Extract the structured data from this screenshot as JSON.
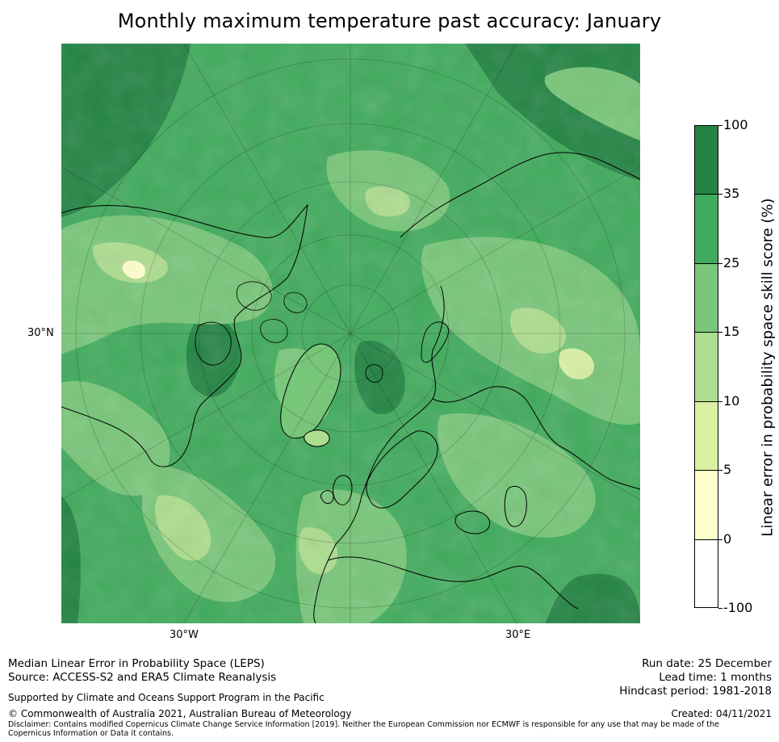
{
  "title": "Monthly maximum temperature past accuracy: January",
  "map": {
    "projection": "north-polar-stereographic",
    "axis_labels": {
      "lat": "30°N",
      "lon_w": "30°W",
      "lon_e": "30°E"
    }
  },
  "colorbar": {
    "label": "Linear error in probability space skill score (%)",
    "ticks": [
      "100",
      "35",
      "25",
      "15",
      "10",
      "5",
      "0",
      "-100"
    ],
    "bins": [
      {
        "from": 35,
        "to": 100,
        "color": "#238443"
      },
      {
        "from": 25,
        "to": 35,
        "color": "#41ab5d"
      },
      {
        "from": 15,
        "to": 25,
        "color": "#78c679"
      },
      {
        "from": 10,
        "to": 15,
        "color": "#addd8e"
      },
      {
        "from": 5,
        "to": 10,
        "color": "#d9f0a3"
      },
      {
        "from": 0,
        "to": 5,
        "color": "#ffffcc"
      },
      {
        "from": -100,
        "to": 0,
        "color": "#ffffff"
      }
    ]
  },
  "footer": {
    "metric": "Median Linear Error in Probability Space (LEPS)",
    "source": "Source: ACCESS-S2 and ERA5 Climate Reanalysis",
    "support": "Supported by Climate and Oceans Support Program in the Pacific",
    "copyright": "© Commonwealth of Australia 2021, Australian Bureau of Meteorology",
    "disclaimer": "Disclaimer: Contains modified Copernicus Climate Change Service Information [2019]. Neither the European Commission nor ECMWF is responsible for any use that may be made of the Copernicus Information or Data it contains.",
    "run_date": "Run date: 25 December",
    "lead_time": "Lead time: 1 months",
    "hindcast": "Hindcast period: 1981-2018",
    "created": "Created: 04/11/2021"
  }
}
